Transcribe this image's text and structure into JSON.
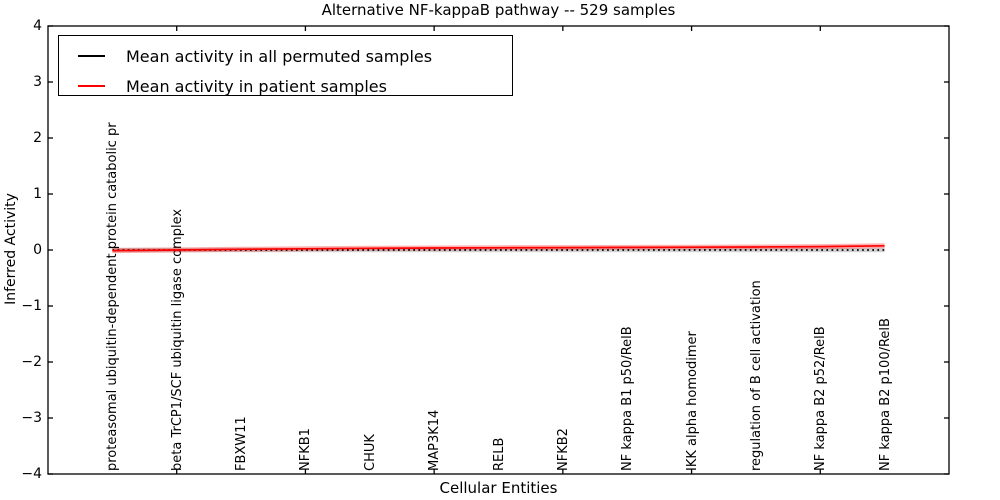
{
  "title": "Alternative NF-kappaB pathway -- 529 samples",
  "axes": {
    "xlabel": "Cellular Entities",
    "ylabel": "Inferred Activity",
    "ytick_labels": [
      "4",
      "3",
      "2",
      "1",
      "0",
      "−1",
      "−2",
      "−3",
      "−4"
    ]
  },
  "legend": {
    "items": [
      {
        "label": "Mean activity in all permuted samples",
        "color": "#000000"
      },
      {
        "label": "Mean activity in patient samples",
        "color": "#ff0000"
      }
    ]
  },
  "chart_data": {
    "type": "line",
    "title": "Alternative NF-kappaB pathway -- 529 samples",
    "xlabel": "Cellular Entities",
    "ylabel": "Inferred Activity",
    "xlim": [
      0,
      14
    ],
    "ylim": [
      -4,
      4
    ],
    "yticks": [
      -4,
      -3,
      -2,
      -1,
      0,
      1,
      2,
      3,
      4
    ],
    "xticks_unlabeled": [
      2,
      4,
      6,
      8,
      10,
      12
    ],
    "grid": false,
    "legend_position": "upper left",
    "categories": [
      "proteasomal ubiquitin-dependent protein catabolic pr",
      "beta TrCP1/SCF ubiquitin ligase complex",
      "FBXW11",
      "NFKB1",
      "CHUK",
      "MAP3K14",
      "RELB",
      "NFKB2",
      "NF kappa B1 p50/RelB",
      "IKK alpha homodimer",
      "regulation of B cell activation",
      "NF kappa B2 p52/RelB",
      "NF kappa B2 p100/RelB"
    ],
    "category_x": [
      1,
      2,
      3,
      4,
      5,
      6,
      7,
      8,
      9,
      10,
      11,
      12,
      13
    ],
    "series": [
      {
        "name": "Mean activity in all permuted samples",
        "color": "#000000",
        "style": "dotted",
        "values": [
          0,
          0,
          0,
          0,
          0,
          0,
          0,
          0,
          0,
          0,
          0,
          0,
          0
        ],
        "band_halfwidth": 0.04,
        "band_color": "rgba(0,0,0,0.18)"
      },
      {
        "name": "Mean activity in patient samples",
        "color": "#ff0000",
        "style": "solid",
        "values": [
          -0.01,
          0.0,
          0.012,
          0.021,
          0.03,
          0.035,
          0.04,
          0.042,
          0.046,
          0.05,
          0.053,
          0.06,
          0.075
        ],
        "band_halfwidth": 0.045,
        "band_color": "rgba(255,0,0,0.3)"
      }
    ]
  }
}
